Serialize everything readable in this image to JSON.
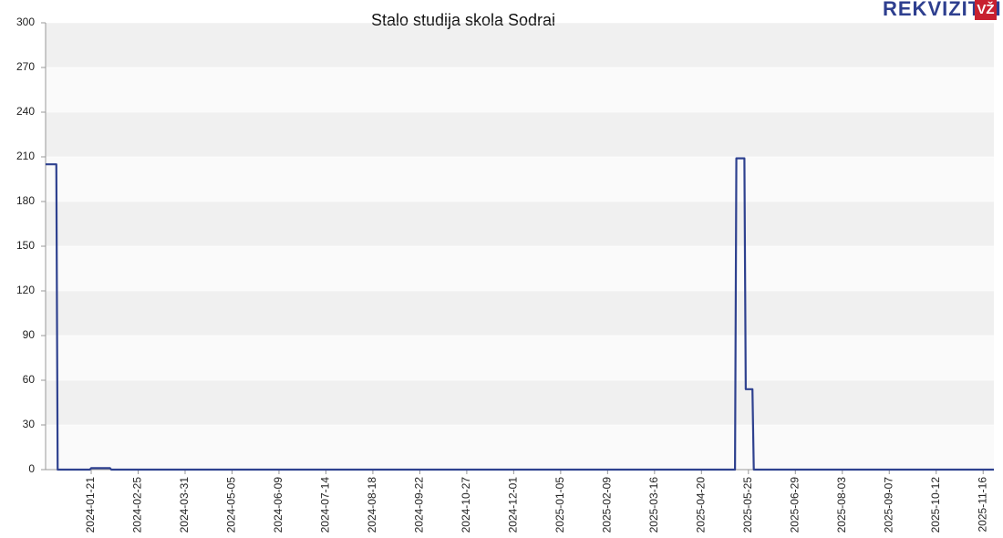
{
  "chart_data": {
    "type": "line",
    "title": "Stalo studija skola Sodrai",
    "logo": {
      "text": "REKVIZITAI",
      "badge": "VŽ"
    },
    "x": [
      "2023-12-18",
      "2023-12-26",
      "2023-12-27",
      "2024-01-20",
      "2024-01-21",
      "2024-02-04",
      "2024-02-05",
      "2025-05-15",
      "2025-05-16",
      "2025-05-22",
      "2025-05-23",
      "2025-05-28",
      "2025-05-29",
      "2025-11-24"
    ],
    "series": [
      {
        "name": "Stalo studija skola Sodrai",
        "color": "#2e418f",
        "values": [
          205,
          205,
          0,
          0,
          1,
          1,
          0,
          0,
          209,
          209,
          54,
          54,
          0,
          0
        ]
      }
    ],
    "xlim": [
      "2023-12-18",
      "2025-11-24"
    ],
    "xticks": [
      "2024-01-21",
      "2024-02-25",
      "2024-03-31",
      "2024-05-05",
      "2024-06-09",
      "2024-07-14",
      "2024-08-18",
      "2024-09-22",
      "2024-10-27",
      "2024-12-01",
      "2025-01-05",
      "2025-02-09",
      "2025-03-16",
      "2025-04-20",
      "2025-05-25",
      "2025-06-29",
      "2025-08-03",
      "2025-09-07",
      "2025-10-12",
      "2025-11-16"
    ],
    "ylim": [
      0,
      300
    ],
    "yticks": [
      0,
      30,
      60,
      90,
      120,
      150,
      180,
      210,
      240,
      270,
      300
    ],
    "grid": true
  }
}
